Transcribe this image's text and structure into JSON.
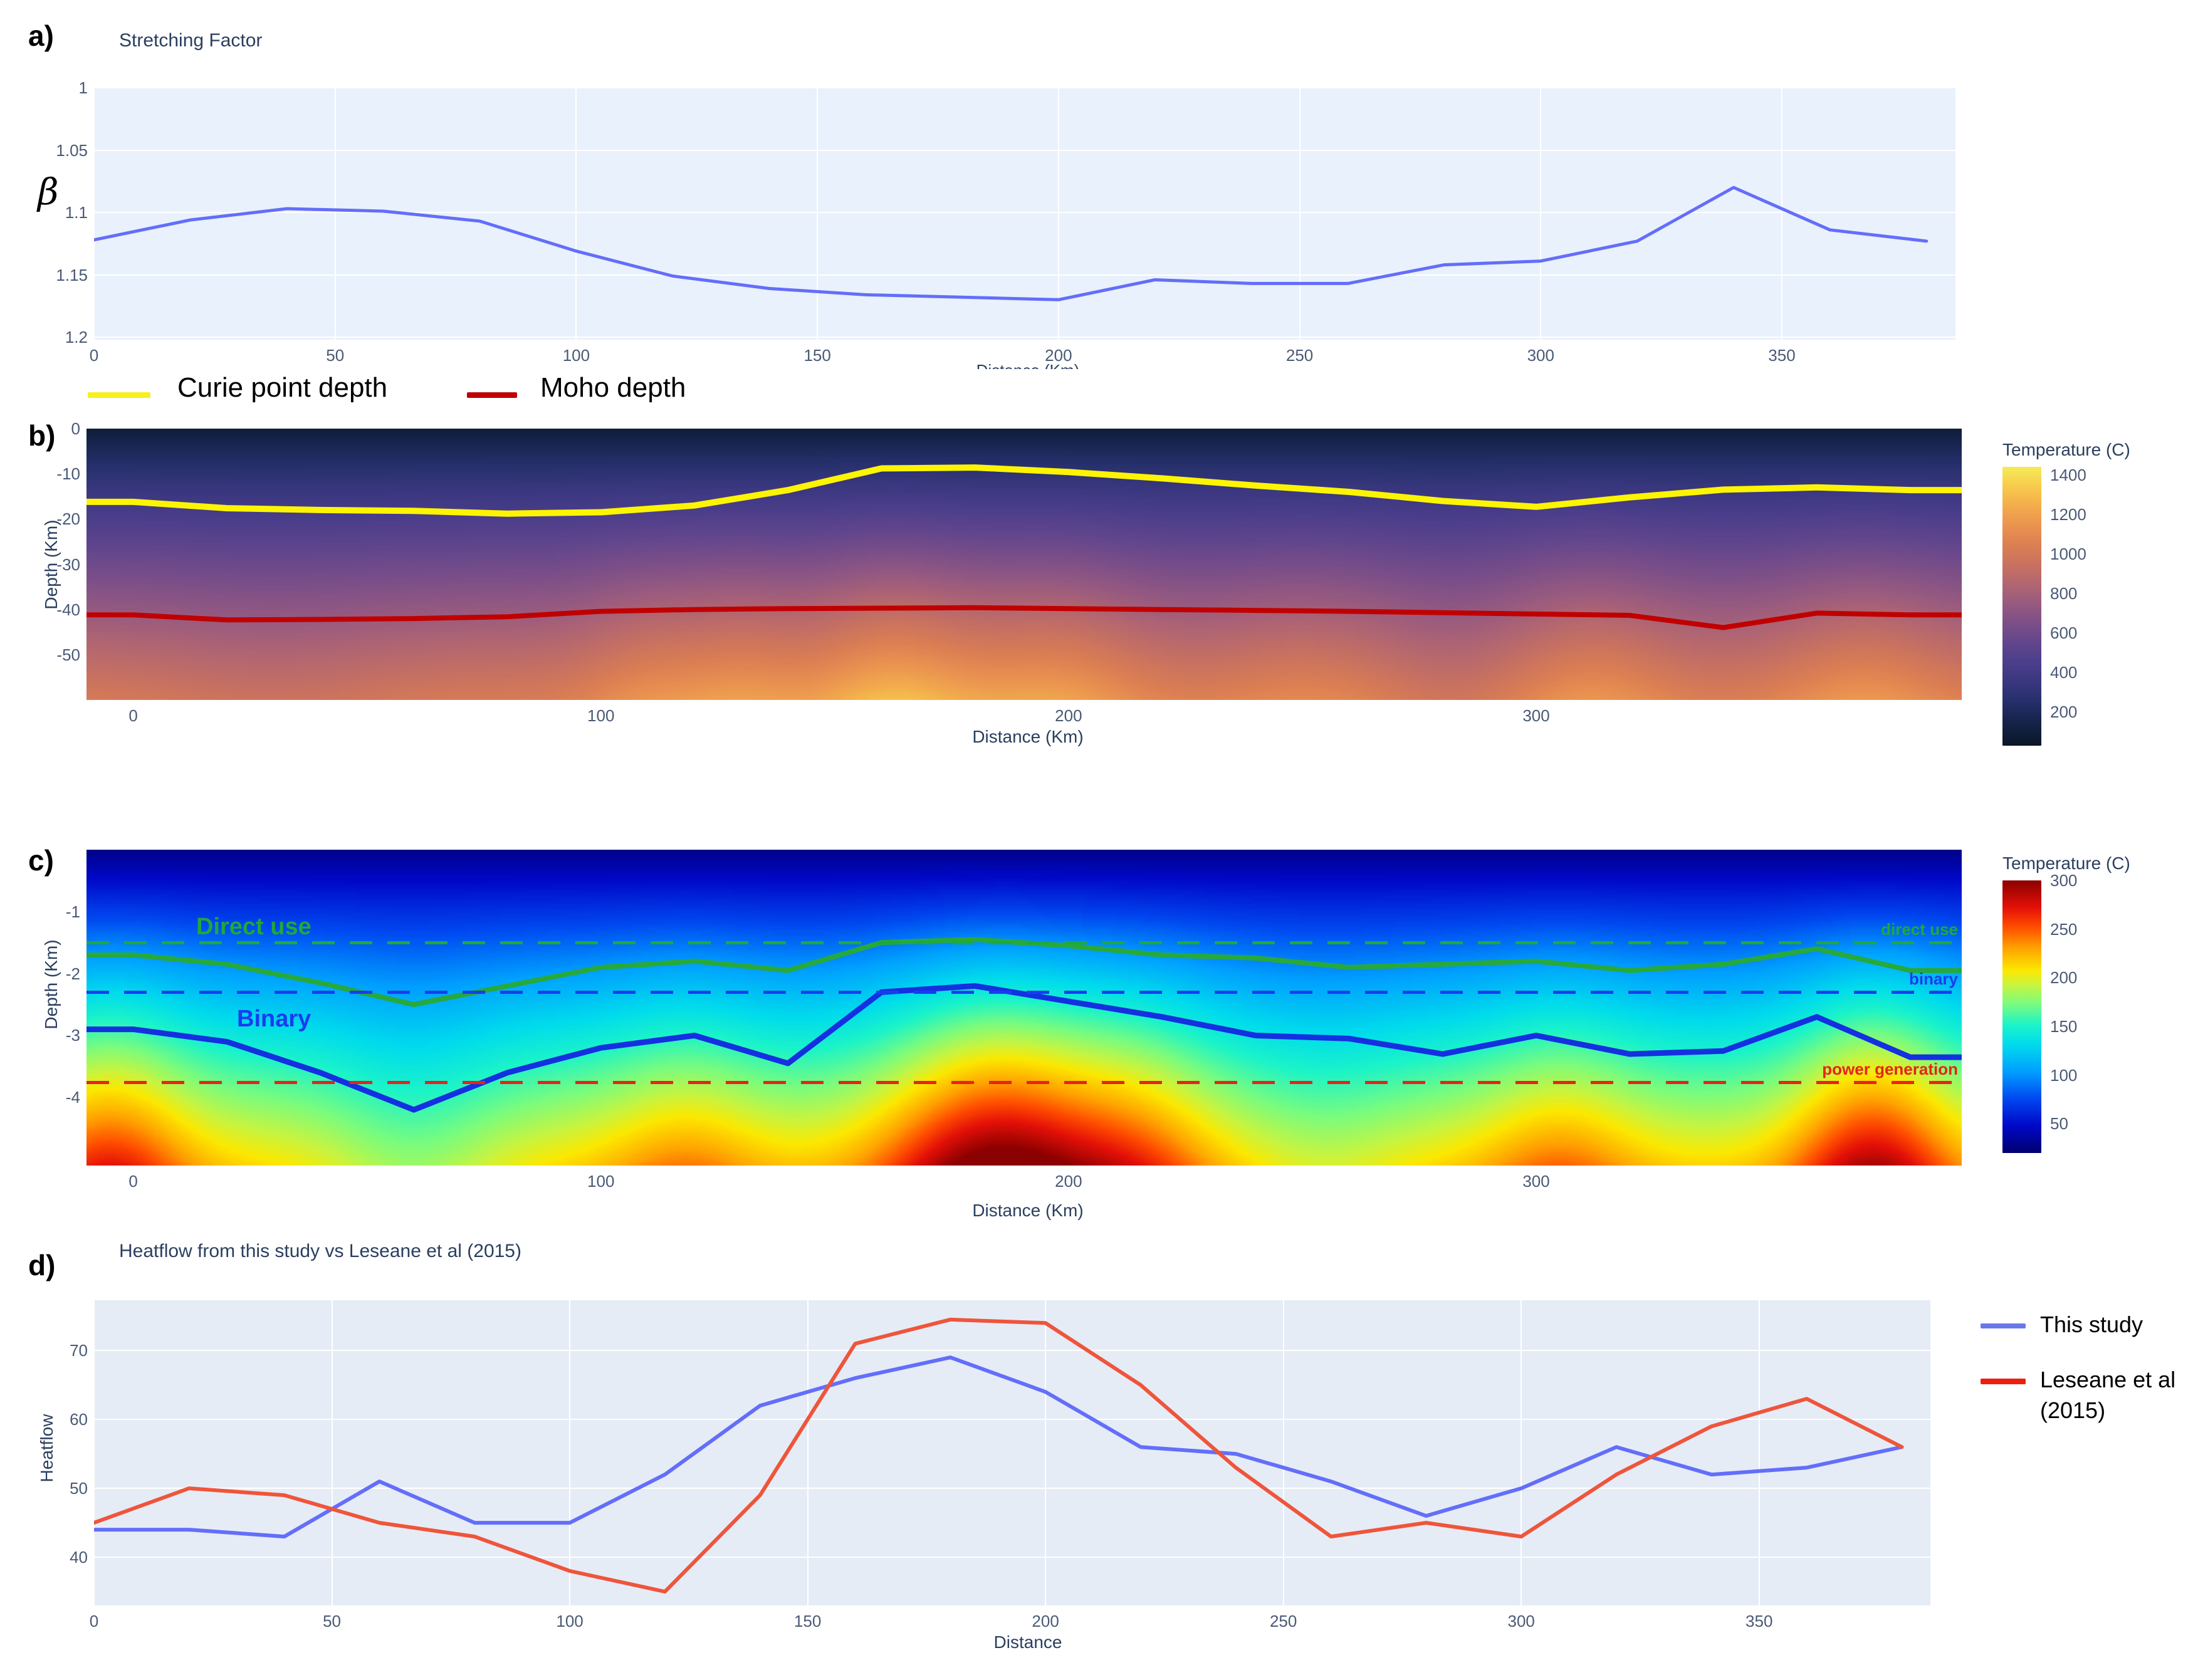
{
  "ui": {
    "panel_letters": {
      "a": "a)",
      "b": "b)",
      "c": "c)",
      "d": "d)"
    },
    "legend_b": [
      {
        "label": "Curie point depth",
        "color": "#f6f01e"
      },
      {
        "label": "Moho depth",
        "color": "#c00000"
      }
    ],
    "legend_d": [
      {
        "label": "This study",
        "color": "#6b78ea"
      },
      {
        "label": "Leseane et al (2015)",
        "color": "#ee1d0e"
      }
    ]
  },
  "chart_data": [
    {
      "id": "a",
      "type": "line",
      "title": "Stretching Factor",
      "xlabel": "Distance (Km)",
      "ylabel": "β",
      "bg": "#e9f1fc",
      "grid": true,
      "y_reversed": true,
      "x_min": 0,
      "x_max": 386,
      "y_top": 1.0,
      "y_bottom": 1.202,
      "x": [
        0,
        20,
        40,
        60,
        80,
        100,
        120,
        140,
        160,
        180,
        200,
        220,
        240,
        260,
        280,
        300,
        320,
        340,
        360,
        380
      ],
      "xticks": [
        {
          "v": 0,
          "label": "0"
        },
        {
          "v": 50,
          "label": "50"
        },
        {
          "v": 100,
          "label": "100"
        },
        {
          "v": 150,
          "label": "150"
        },
        {
          "v": 200,
          "label": "200"
        },
        {
          "v": 250,
          "label": "250"
        },
        {
          "v": 300,
          "label": "300"
        },
        {
          "v": 350,
          "label": "350"
        }
      ],
      "yticks": [
        {
          "v": 1.0,
          "label": "1"
        },
        {
          "v": 1.05,
          "label": "1.05"
        },
        {
          "v": 1.1,
          "label": "1.1"
        },
        {
          "v": 1.15,
          "label": "1.15"
        },
        {
          "v": 1.2,
          "label": "1.2"
        }
      ],
      "series": [
        {
          "name": "beta",
          "color": "#636efa",
          "width": 5,
          "values": [
            1.122,
            1.106,
            1.097,
            1.099,
            1.107,
            1.131,
            1.151,
            1.161,
            1.166,
            1.168,
            1.17,
            1.154,
            1.157,
            1.157,
            1.142,
            1.139,
            1.123,
            1.08,
            1.114,
            1.123
          ]
        }
      ]
    },
    {
      "id": "b",
      "type": "heatmap",
      "xlabel": "Distance (Km)",
      "ylabel": "Depth (Km)",
      "x_min": -10,
      "x_max": 391,
      "y_top": 0,
      "y_bottom": -60,
      "xticks": [
        {
          "v": 0,
          "label": "0"
        },
        {
          "v": 100,
          "label": "100"
        },
        {
          "v": 200,
          "label": "200"
        },
        {
          "v": 300,
          "label": "300"
        }
      ],
      "yticks": [
        {
          "v": 0,
          "label": "0"
        },
        {
          "v": -10,
          "label": "-10"
        },
        {
          "v": -20,
          "label": "-20"
        },
        {
          "v": -30,
          "label": "-30"
        },
        {
          "v": -40,
          "label": "-40"
        },
        {
          "v": -50,
          "label": "-50"
        }
      ],
      "colorbar": {
        "title": "Temperature (C)",
        "range": [
          30,
          1440
        ],
        "ticks": [
          {
            "v": 1400,
            "label": "1400"
          },
          {
            "v": 1200,
            "label": "1200"
          },
          {
            "v": 1000,
            "label": "1000"
          },
          {
            "v": 800,
            "label": "800"
          },
          {
            "v": 600,
            "label": "600"
          },
          {
            "v": 400,
            "label": "400"
          },
          {
            "v": 200,
            "label": "200"
          }
        ]
      },
      "colormap": [
        [
          0,
          "#0a1626"
        ],
        [
          0.09,
          "#16244c"
        ],
        [
          0.16,
          "#25306b"
        ],
        [
          0.23,
          "#3a377f"
        ],
        [
          0.3,
          "#4c3e8b"
        ],
        [
          0.37,
          "#62468c"
        ],
        [
          0.44,
          "#7c4f88"
        ],
        [
          0.51,
          "#975a80"
        ],
        [
          0.58,
          "#b26671"
        ],
        [
          0.65,
          "#c97260"
        ],
        [
          0.72,
          "#dc7f53"
        ],
        [
          0.79,
          "#ea9350"
        ],
        [
          0.86,
          "#f3ac4c"
        ],
        [
          0.93,
          "#f8ca4d"
        ],
        [
          1,
          "#f5eb56"
        ]
      ],
      "field": {
        "t_top": 90,
        "t_bottom": 1020,
        "gamma": 0.85,
        "plumes": [
          {
            "x": 110,
            "A": 120,
            "w": 10
          },
          {
            "x": 130,
            "A": 150,
            "w": 10
          },
          {
            "x": 162,
            "A": 280,
            "w": 14
          },
          {
            "x": 197,
            "A": 190,
            "w": 14
          },
          {
            "x": 250,
            "A": 80,
            "w": 14
          },
          {
            "x": 312,
            "A": 140,
            "w": 12
          },
          {
            "x": 370,
            "A": 150,
            "w": 13
          },
          {
            "x": 30,
            "A": -60,
            "w": 20
          },
          {
            "x": 282,
            "A": -50,
            "w": 10
          }
        ]
      },
      "x": [
        0,
        20,
        40,
        60,
        80,
        100,
        120,
        140,
        160,
        180,
        200,
        220,
        240,
        260,
        280,
        300,
        320,
        340,
        360,
        380
      ],
      "lines": [
        {
          "name": "Curie point depth",
          "color": "#fdf403",
          "width": 10,
          "extend": true,
          "depth": [
            -16.2,
            -17.6,
            -18.0,
            -18.2,
            -18.8,
            -18.5,
            -17.0,
            -13.6,
            -8.8,
            -8.6,
            -9.6,
            -11.0,
            -12.6,
            -14.0,
            -16.0,
            -17.3,
            -15.2,
            -13.5,
            -13.0,
            -13.6
          ]
        },
        {
          "name": "Moho depth",
          "color": "#c00000",
          "width": 8,
          "extend": true,
          "depth": [
            -41.2,
            -42.3,
            -42.2,
            -42.0,
            -41.6,
            -40.4,
            -40.0,
            -39.8,
            -39.7,
            -39.6,
            -39.8,
            -40.0,
            -40.2,
            -40.4,
            -40.7,
            -41.0,
            -41.3,
            -44.0,
            -40.8,
            -41.2
          ]
        }
      ]
    },
    {
      "id": "c",
      "type": "heatmap",
      "xlabel": "Distance (Km)",
      "ylabel": "Depth (Km)",
      "x_min": -10,
      "x_max": 391,
      "y_top": 0,
      "y_bottom": -5.1,
      "xticks": [
        {
          "v": 0,
          "label": "0"
        },
        {
          "v": 100,
          "label": "100"
        },
        {
          "v": 200,
          "label": "200"
        },
        {
          "v": 300,
          "label": "300"
        }
      ],
      "yticks": [
        {
          "v": -1,
          "label": "-1"
        },
        {
          "v": -2,
          "label": "-2"
        },
        {
          "v": -3,
          "label": "-3"
        },
        {
          "v": -4,
          "label": "-4"
        }
      ],
      "colorbar": {
        "title": "Temperature (C)",
        "range": [
          20,
          300
        ],
        "ticks": [
          {
            "v": 300,
            "label": "300"
          },
          {
            "v": 250,
            "label": "250"
          },
          {
            "v": 200,
            "label": "200"
          },
          {
            "v": 150,
            "label": "150"
          },
          {
            "v": 100,
            "label": "100"
          },
          {
            "v": 50,
            "label": "50"
          }
        ]
      },
      "colormap": [
        [
          0,
          "#00006e"
        ],
        [
          0.1,
          "#0008c8"
        ],
        [
          0.2,
          "#0048f0"
        ],
        [
          0.3,
          "#00a0ff"
        ],
        [
          0.4,
          "#00dcec"
        ],
        [
          0.47,
          "#1cf4c8"
        ],
        [
          0.55,
          "#7cfc7c"
        ],
        [
          0.62,
          "#ccf43c"
        ],
        [
          0.67,
          "#fce800"
        ],
        [
          0.75,
          "#ffa400"
        ],
        [
          0.83,
          "#ff4c00"
        ],
        [
          0.9,
          "#e41008"
        ],
        [
          1,
          "#8b0000"
        ]
      ],
      "field": {
        "t_top": 28,
        "t_bottom": 212,
        "gamma": 0.95,
        "plumes": [
          {
            "x": -5,
            "A": 60,
            "w": 12
          },
          {
            "x": 118,
            "A": 30,
            "w": 12
          },
          {
            "x": 185,
            "A": 105,
            "w": 17
          },
          {
            "x": 215,
            "A": 40,
            "w": 12
          },
          {
            "x": 305,
            "A": 35,
            "w": 12
          },
          {
            "x": 372,
            "A": 80,
            "w": 12
          },
          {
            "x": 60,
            "A": -30,
            "w": 14
          },
          {
            "x": 255,
            "A": -15,
            "w": 12
          }
        ]
      },
      "x": [
        0,
        20,
        40,
        60,
        80,
        100,
        120,
        140,
        160,
        180,
        200,
        220,
        240,
        260,
        280,
        300,
        320,
        340,
        360,
        380
      ],
      "lines": [
        {
          "name": "Direct use isoline",
          "color": "#27a93c",
          "width": 8,
          "extend": true,
          "depth": [
            -1.7,
            -1.85,
            -2.15,
            -2.5,
            -2.2,
            -1.9,
            -1.8,
            -1.95,
            -1.5,
            -1.45,
            -1.55,
            -1.7,
            -1.75,
            -1.9,
            -1.85,
            -1.8,
            -1.95,
            -1.85,
            -1.6,
            -1.95
          ]
        },
        {
          "name": "Binary isoline",
          "color": "#1430e0",
          "width": 9,
          "extend": true,
          "depth": [
            -2.9,
            -3.1,
            -3.6,
            -4.2,
            -3.6,
            -3.2,
            -3.0,
            -3.45,
            -2.3,
            -2.2,
            -2.45,
            -2.7,
            -3.0,
            -3.05,
            -3.3,
            -3.0,
            -3.3,
            -3.25,
            -2.7,
            -3.35
          ]
        }
      ],
      "thresholds": [
        {
          "label": "Direct use",
          "right_label": "direct use",
          "depth": -1.5,
          "color": "#1fa83c",
          "label_x": 175,
          "label_dy": -46
        },
        {
          "label": "Binary",
          "right_label": "binary",
          "depth": -2.3,
          "color": "#1a3cf0",
          "label_x": 240,
          "label_dy": 22
        },
        {
          "label": "",
          "right_label": "power generation",
          "depth": -3.75,
          "color": "#e8231a",
          "label_x": 0,
          "label_dy": 0
        }
      ]
    },
    {
      "id": "d",
      "type": "line",
      "title": "Heatflow from this study vs Leseane et al (2015)",
      "xlabel": "Distance",
      "ylabel": "Heatflow",
      "bg": "#e5ecf6",
      "grid": true,
      "y_reversed": false,
      "x_min": 0,
      "x_max": 386,
      "y_top": 77.3,
      "y_bottom": 33,
      "x": [
        0,
        20,
        40,
        60,
        80,
        100,
        120,
        140,
        160,
        180,
        200,
        220,
        240,
        260,
        280,
        300,
        320,
        340,
        360,
        380
      ],
      "xticks": [
        {
          "v": 0,
          "label": "0"
        },
        {
          "v": 50,
          "label": "50"
        },
        {
          "v": 100,
          "label": "100"
        },
        {
          "v": 150,
          "label": "150"
        },
        {
          "v": 200,
          "label": "200"
        },
        {
          "v": 250,
          "label": "250"
        },
        {
          "v": 300,
          "label": "300"
        },
        {
          "v": 350,
          "label": "350"
        }
      ],
      "yticks": [
        {
          "v": 40,
          "label": "40"
        },
        {
          "v": 50,
          "label": "50"
        },
        {
          "v": 60,
          "label": "60"
        },
        {
          "v": 70,
          "label": "70"
        }
      ],
      "series": [
        {
          "name": "This study",
          "color": "#636efa",
          "width": 6,
          "values": [
            44,
            44,
            43,
            51,
            45,
            45,
            52,
            62,
            66,
            69,
            64,
            56,
            55,
            51,
            46,
            50,
            56,
            52,
            53,
            56
          ]
        },
        {
          "name": "Leseane et al (2015)",
          "color": "#ef553b",
          "width": 6,
          "values": [
            45,
            50,
            49,
            45,
            43,
            38,
            35,
            49,
            71,
            74.5,
            74,
            65,
            53,
            43,
            45,
            43,
            52,
            59,
            63,
            56
          ]
        }
      ]
    }
  ]
}
